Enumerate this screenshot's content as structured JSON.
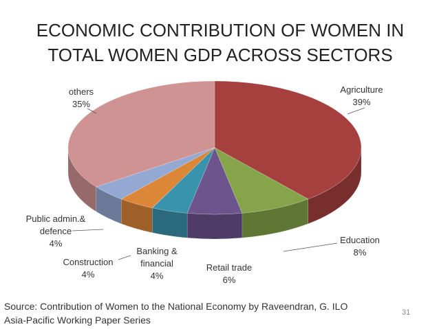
{
  "chart_data": {
    "type": "pie",
    "title": "ECONOMIC CONTRIBUTION OF WOMEN IN TOTAL WOMEN GDP ACROSS SECTORS",
    "categories": [
      "Agriculture",
      "Education",
      "Retail trade",
      "Banking & financial",
      "Construction",
      "Public admin.& defence",
      "others"
    ],
    "values": [
      39,
      8,
      6,
      4,
      4,
      4,
      35
    ],
    "value_labels": [
      "39%",
      "8%",
      "6%",
      "4%",
      "4%",
      "4%",
      "35%"
    ],
    "colors": [
      "#a5403f",
      "#86a44a",
      "#6e548d",
      "#3a93ac",
      "#dc8637",
      "#93a9d3",
      "#d09393"
    ]
  },
  "footer": {
    "source": "Source: Contribution of Women to the National Economy by Raveendran, G. ILO Asia-Pacific Working Paper Series",
    "page_number": 31
  }
}
